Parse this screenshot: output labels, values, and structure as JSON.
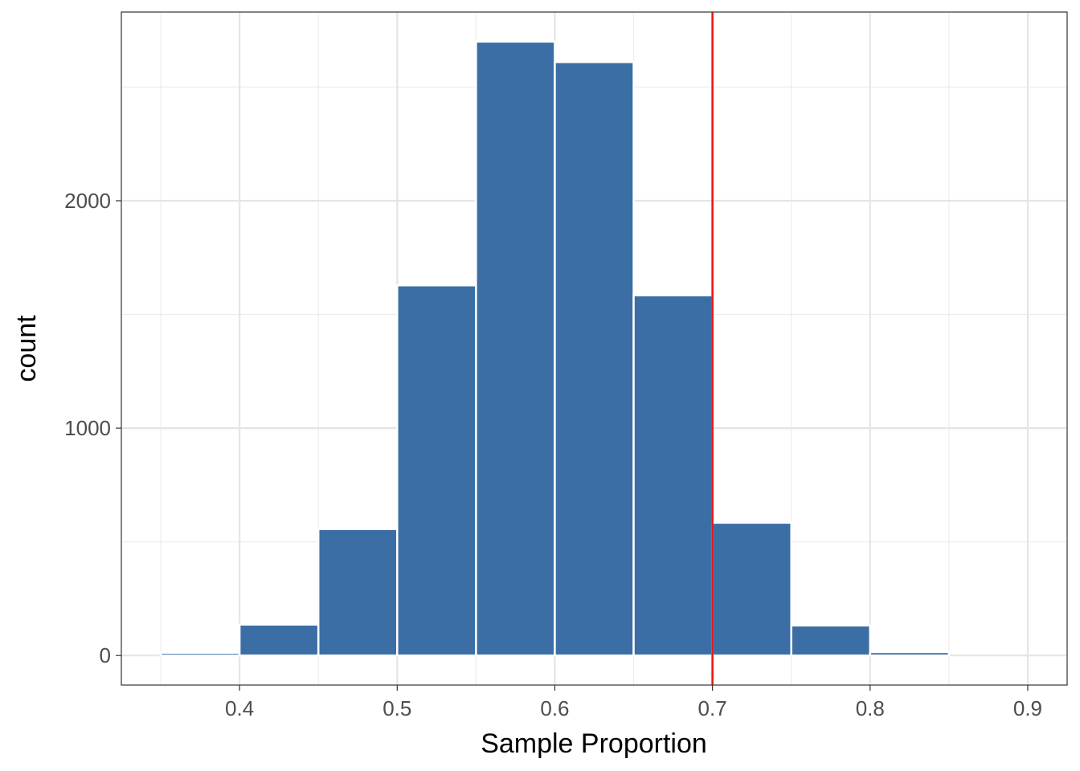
{
  "chart_data": {
    "type": "bar",
    "subtype": "histogram",
    "title": "",
    "xlabel": "Sample Proportion",
    "ylabel": "count",
    "xlim": [
      0.325,
      0.925
    ],
    "ylim": [
      -130,
      2830
    ],
    "x_ticks": [
      {
        "value": 0.4,
        "label": "0.4"
      },
      {
        "value": 0.5,
        "label": "0.5"
      },
      {
        "value": 0.6,
        "label": "0.6"
      },
      {
        "value": 0.7,
        "label": "0.7"
      },
      {
        "value": 0.8,
        "label": "0.8"
      },
      {
        "value": 0.9,
        "label": "0.9"
      }
    ],
    "y_ticks": [
      {
        "value": 0,
        "label": "0"
      },
      {
        "value": 1000,
        "label": "1000"
      },
      {
        "value": 2000,
        "label": "2000"
      }
    ],
    "bins": [
      {
        "x_start": 0.35,
        "x_end": 0.4,
        "count": 12
      },
      {
        "x_start": 0.4,
        "x_end": 0.45,
        "count": 136
      },
      {
        "x_start": 0.45,
        "x_end": 0.5,
        "count": 556
      },
      {
        "x_start": 0.5,
        "x_end": 0.55,
        "count": 1628
      },
      {
        "x_start": 0.55,
        "x_end": 0.6,
        "count": 2700
      },
      {
        "x_start": 0.6,
        "x_end": 0.65,
        "count": 2610
      },
      {
        "x_start": 0.65,
        "x_end": 0.7,
        "count": 1584
      },
      {
        "x_start": 0.7,
        "x_end": 0.75,
        "count": 584
      },
      {
        "x_start": 0.75,
        "x_end": 0.8,
        "count": 132
      },
      {
        "x_start": 0.8,
        "x_end": 0.85,
        "count": 15
      },
      {
        "x_start": 0.85,
        "x_end": 0.9,
        "count": 0
      }
    ],
    "reference_line": {
      "x": 0.7,
      "color": "#ee1111"
    },
    "bar_fill": "#3a6ea5",
    "bar_outline": "#ffffff",
    "grid": true,
    "legend": "none"
  }
}
